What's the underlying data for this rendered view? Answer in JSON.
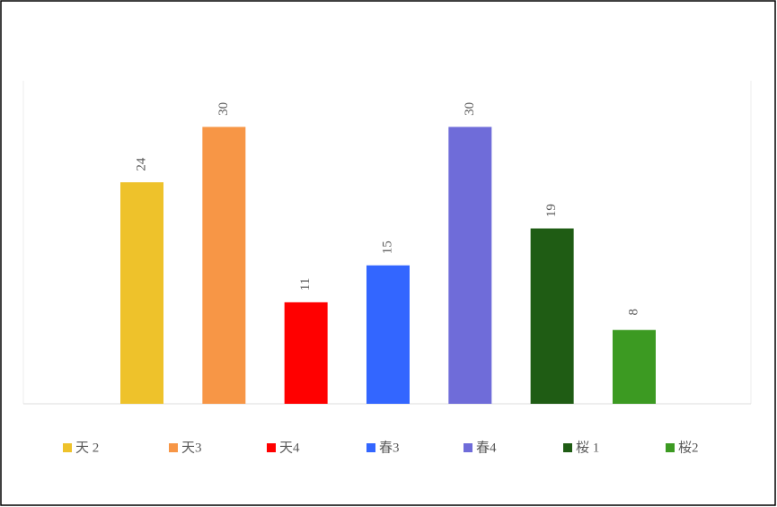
{
  "chart_data": {
    "type": "bar",
    "series": [
      {
        "name": "天 2",
        "color": "#eec22b",
        "values": [
          24
        ]
      },
      {
        "name": "天3",
        "color": "#f79646",
        "values": [
          30
        ]
      },
      {
        "name": "天4",
        "color": "#ff0000",
        "values": [
          11
        ]
      },
      {
        "name": "春3",
        "color": "#3366ff",
        "values": [
          15
        ]
      },
      {
        "name": "春4",
        "color": "#6f6cd9",
        "values": [
          30
        ]
      },
      {
        "name": "桜 1",
        "color": "#1f5c14",
        "values": [
          19
        ]
      },
      {
        "name": "桜2",
        "color": "#3c9a22",
        "values": [
          8
        ]
      }
    ],
    "ylim": [
      0,
      35
    ],
    "legend": "bottom"
  }
}
